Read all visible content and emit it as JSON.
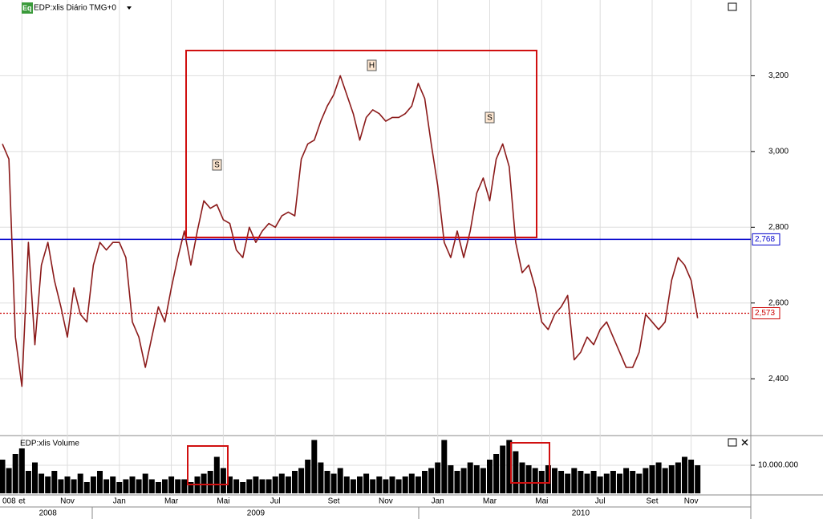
{
  "chart_data": {
    "type": "line",
    "title": "EDP:xlis Diário TMG+0",
    "volume_title": "EDP:xlis Volume",
    "annotations": [
      "S",
      "H",
      "S"
    ],
    "categories": [
      "008",
      null,
      null,
      "et",
      null,
      null,
      null,
      null,
      null,
      null,
      "Nov",
      null,
      null,
      null,
      null,
      null,
      null,
      null,
      "Jan",
      null,
      null,
      null,
      null,
      null,
      null,
      null,
      "Mar",
      null,
      null,
      null,
      null,
      null,
      null,
      null,
      "Mai",
      null,
      null,
      null,
      null,
      null,
      null,
      null,
      "Jul",
      null,
      null,
      null,
      null,
      null,
      null,
      null,
      null,
      "Set",
      null,
      null,
      null,
      null,
      null,
      null,
      null,
      "Nov",
      null,
      null,
      null,
      null,
      null,
      null,
      null,
      "Jan",
      null,
      null,
      null,
      null,
      null,
      null,
      null,
      "Mar",
      null,
      null,
      null,
      null,
      null,
      null,
      null,
      "Mai",
      null,
      null,
      null,
      null,
      null,
      null,
      null,
      null,
      "Jul",
      null,
      null,
      null,
      null,
      null,
      null,
      null,
      "Set",
      null,
      null,
      null,
      null,
      null,
      "Nov",
      null
    ],
    "years": [
      null,
      null,
      null,
      null,
      null,
      null,
      null,
      "2008",
      null,
      null,
      null,
      null,
      null,
      null,
      null,
      null,
      null,
      null,
      null,
      null,
      null,
      null,
      null,
      null,
      null,
      null,
      null,
      null,
      null,
      null,
      null,
      null,
      null,
      null,
      null,
      null,
      null,
      null,
      null,
      "2009",
      null,
      null,
      null,
      null,
      null,
      null,
      null,
      null,
      null,
      null,
      null,
      null,
      null,
      null,
      null,
      null,
      null,
      null,
      null,
      null,
      null,
      null,
      null,
      null,
      null,
      null,
      null,
      null,
      null,
      null,
      null,
      null,
      null,
      null,
      null,
      null,
      null,
      null,
      null,
      null,
      null,
      null,
      null,
      null,
      null,
      null,
      null,
      null,
      null,
      "2010",
      null,
      null,
      null,
      null,
      null,
      null,
      null,
      null,
      null,
      null,
      null,
      null,
      null,
      null,
      null,
      null,
      null,
      null
    ],
    "series": [
      {
        "name": "EDP:xlis",
        "color": "#8b1a1a",
        "values": [
          3.02,
          2.98,
          2.51,
          2.38,
          2.76,
          2.49,
          2.7,
          2.76,
          2.66,
          2.59,
          2.51,
          2.64,
          2.57,
          2.55,
          2.7,
          2.76,
          2.74,
          2.76,
          2.76,
          2.72,
          2.55,
          2.51,
          2.43,
          2.51,
          2.59,
          2.55,
          2.64,
          2.72,
          2.79,
          2.7,
          2.79,
          2.87,
          2.85,
          2.86,
          2.82,
          2.81,
          2.74,
          2.72,
          2.8,
          2.76,
          2.79,
          2.81,
          2.8,
          2.83,
          2.84,
          2.83,
          2.98,
          3.02,
          3.03,
          3.08,
          3.12,
          3.15,
          3.2,
          3.15,
          3.1,
          3.03,
          3.09,
          3.11,
          3.1,
          3.08,
          3.09,
          3.09,
          3.1,
          3.12,
          3.18,
          3.14,
          3.02,
          2.91,
          2.76,
          2.72,
          2.79,
          2.72,
          2.79,
          2.89,
          2.93,
          2.87,
          2.98,
          3.02,
          2.96,
          2.76,
          2.68,
          2.7,
          2.64,
          2.55,
          2.53,
          2.57,
          2.59,
          2.62,
          2.45,
          2.47,
          2.51,
          2.49,
          2.53,
          2.55,
          2.51,
          2.47,
          2.43,
          2.43,
          2.47,
          2.57,
          2.55,
          2.53,
          2.55,
          2.66,
          2.72,
          2.7,
          2.66,
          2.56
        ]
      }
    ],
    "volume": {
      "color": "#000000",
      "values": [
        12000000,
        9000000,
        14000000,
        16000000,
        8000000,
        11000000,
        7000000,
        6000000,
        8000000,
        5000000,
        6000000,
        5000000,
        7000000,
        4000000,
        6000000,
        8000000,
        5000000,
        6000000,
        4000000,
        5000000,
        6000000,
        5000000,
        7000000,
        5000000,
        4000000,
        5000000,
        6000000,
        5000000,
        5000000,
        4000000,
        6000000,
        7000000,
        8000000,
        13000000,
        9000000,
        6000000,
        5000000,
        4000000,
        5000000,
        6000000,
        5000000,
        5000000,
        6000000,
        7000000,
        6000000,
        8000000,
        9000000,
        12000000,
        19000000,
        11000000,
        8000000,
        7000000,
        9000000,
        6000000,
        5000000,
        6000000,
        7000000,
        5000000,
        6000000,
        5000000,
        6000000,
        5000000,
        6000000,
        7000000,
        6000000,
        8000000,
        9000000,
        11000000,
        19000000,
        10000000,
        8000000,
        9000000,
        11000000,
        10000000,
        9000000,
        12000000,
        14000000,
        17000000,
        19000000,
        15000000,
        11000000,
        10000000,
        9000000,
        8000000,
        10000000,
        9000000,
        8000000,
        7000000,
        9000000,
        8000000,
        7000000,
        8000000,
        6000000,
        7000000,
        8000000,
        7000000,
        9000000,
        8000000,
        7000000,
        9000000,
        10000000,
        11000000,
        9000000,
        10000000,
        11000000,
        13000000,
        12000000,
        10000000
      ],
      "ylim": [
        0,
        20000000
      ],
      "yticks": [
        {
          "value": 10000000,
          "label": "10.000.000"
        }
      ]
    },
    "price_lines": [
      {
        "value": 2.768,
        "label": "2,768",
        "color": "#0000cc"
      },
      {
        "value": 2.573,
        "label": "2,573",
        "color": "#cc0000"
      }
    ],
    "ylim": [
      2.25,
      3.4
    ],
    "yticks": [
      {
        "value": 2.4,
        "label": "2,400"
      },
      {
        "value": 2.6,
        "label": "2,600"
      },
      {
        "value": 2.8,
        "label": "2,800"
      },
      {
        "value": 3.0,
        "label": "3,000"
      },
      {
        "value": 3.2,
        "label": "3,200"
      }
    ],
    "grid": true
  }
}
